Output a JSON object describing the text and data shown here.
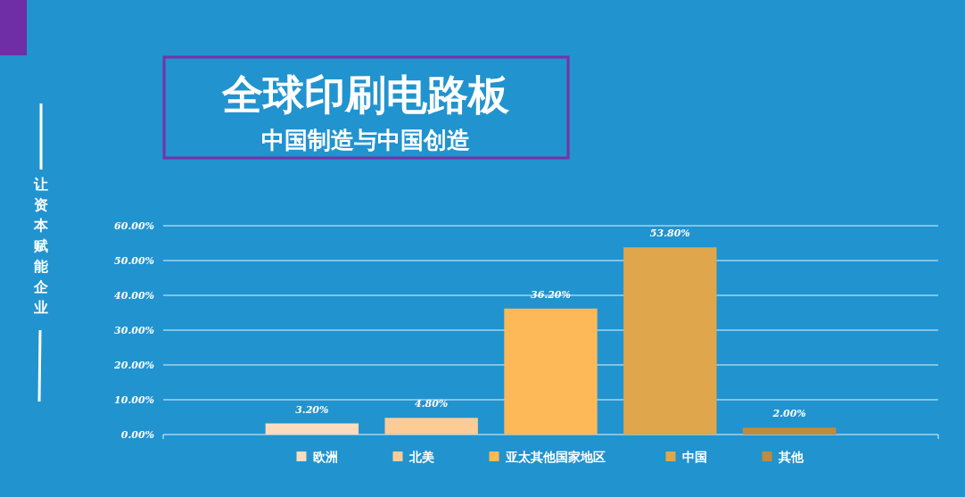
{
  "chart_data": {
    "type": "bar",
    "title": "全球印刷电路板",
    "subtitle": "中国制造与中国创造",
    "annotations": [
      "让资本赋能企业"
    ],
    "categories": [
      null
    ],
    "series": [
      {
        "name": "欧洲",
        "color": "#fcdcbc",
        "values": [
          3.2
        ],
        "value_labels": [
          "3.20%"
        ]
      },
      {
        "name": "北美",
        "color": "#fccb96",
        "values": [
          4.8
        ],
        "value_labels": [
          "4.80%"
        ]
      },
      {
        "name": "亚太其他国家地区",
        "color": "#fdb858",
        "values": [
          36.2
        ],
        "value_labels": [
          "36.20%"
        ]
      },
      {
        "name": "中国",
        "color": "#e0a64c",
        "values": [
          53.8
        ],
        "value_labels": [
          "53.80%"
        ]
      },
      {
        "name": "其他",
        "color": "#c08c3c",
        "values": [
          2.0
        ],
        "value_labels": [
          "2.00%"
        ]
      }
    ],
    "ylim": [
      0,
      60
    ],
    "yticks": [
      {
        "value": 0,
        "label": "0.00%"
      },
      {
        "value": 10,
        "label": "10.00%"
      },
      {
        "value": 20,
        "label": "20.00%"
      },
      {
        "value": 30,
        "label": "30.00%"
      },
      {
        "value": 40,
        "label": "40.00%"
      },
      {
        "value": 50,
        "label": "50.00%"
      },
      {
        "value": 60,
        "label": "60.00%"
      }
    ],
    "grid": "y",
    "legend": "bottom"
  }
}
